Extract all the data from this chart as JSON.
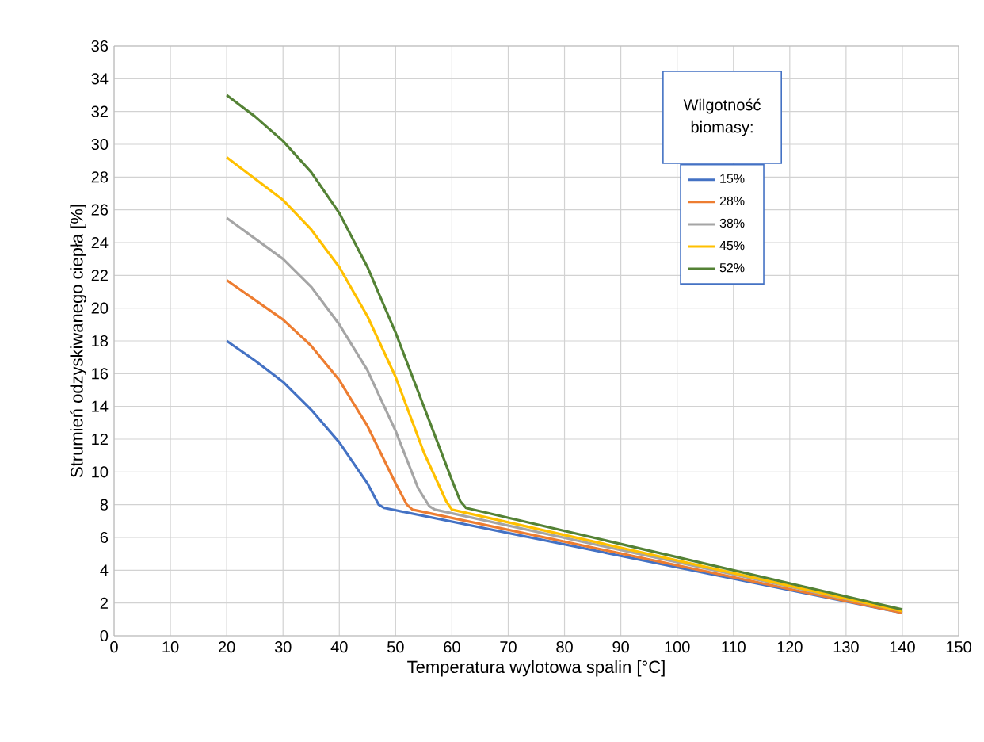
{
  "chart_data": {
    "type": "line",
    "xlabel": "Temperatura wylotowa spalin [°C]",
    "ylabel": "Strumień odzyskiwanego ciepła [%]",
    "legend_title": "Wilgotność biomasy:",
    "xlim": [
      0,
      150
    ],
    "xticks": [
      0,
      10,
      20,
      30,
      40,
      50,
      60,
      70,
      80,
      90,
      100,
      110,
      120,
      130,
      140,
      150
    ],
    "ylim": [
      0,
      36
    ],
    "yticks": [
      0,
      2,
      4,
      6,
      8,
      10,
      12,
      14,
      16,
      18,
      20,
      22,
      24,
      26,
      28,
      30,
      32,
      34,
      36
    ],
    "grid": true,
    "legend": "top right",
    "marker": "none",
    "line_style": "solid",
    "series": [
      {
        "name": "15%",
        "color": "#4472c4",
        "x": [
          20,
          25,
          30,
          35,
          40,
          45,
          47,
          48,
          140
        ],
        "values": [
          18,
          16.8,
          15.5,
          13.8,
          11.8,
          9.3,
          8,
          7.8,
          1.4
        ]
      },
      {
        "name": "28%",
        "color": "#ed7d31",
        "x": [
          20,
          30,
          35,
          40,
          45,
          50,
          52,
          53,
          140
        ],
        "values": [
          21.7,
          19.3,
          17.7,
          15.6,
          12.8,
          9.3,
          8,
          7.7,
          1.4
        ]
      },
      {
        "name": "38%",
        "color": "#a5a5a5",
        "x": [
          20,
          30,
          35,
          40,
          45,
          50,
          54,
          56,
          57,
          140
        ],
        "values": [
          25.5,
          23,
          21.3,
          19,
          16.2,
          12.5,
          9,
          7.9,
          7.7,
          1.5
        ]
      },
      {
        "name": "45%",
        "color": "#ffc000",
        "x": [
          20,
          30,
          35,
          40,
          45,
          50,
          55,
          59,
          60,
          140
        ],
        "values": [
          29.2,
          26.6,
          24.8,
          22.5,
          19.5,
          15.8,
          11.2,
          8.2,
          7.7,
          1.5
        ]
      },
      {
        "name": "52%",
        "color": "#548235",
        "x": [
          20,
          25,
          30,
          35,
          40,
          45,
          50,
          55,
          60,
          61.5,
          62.5,
          140
        ],
        "values": [
          33,
          31.7,
          30.2,
          28.3,
          25.8,
          22.5,
          18.5,
          14,
          9.5,
          8.2,
          7.8,
          1.6
        ]
      }
    ]
  }
}
